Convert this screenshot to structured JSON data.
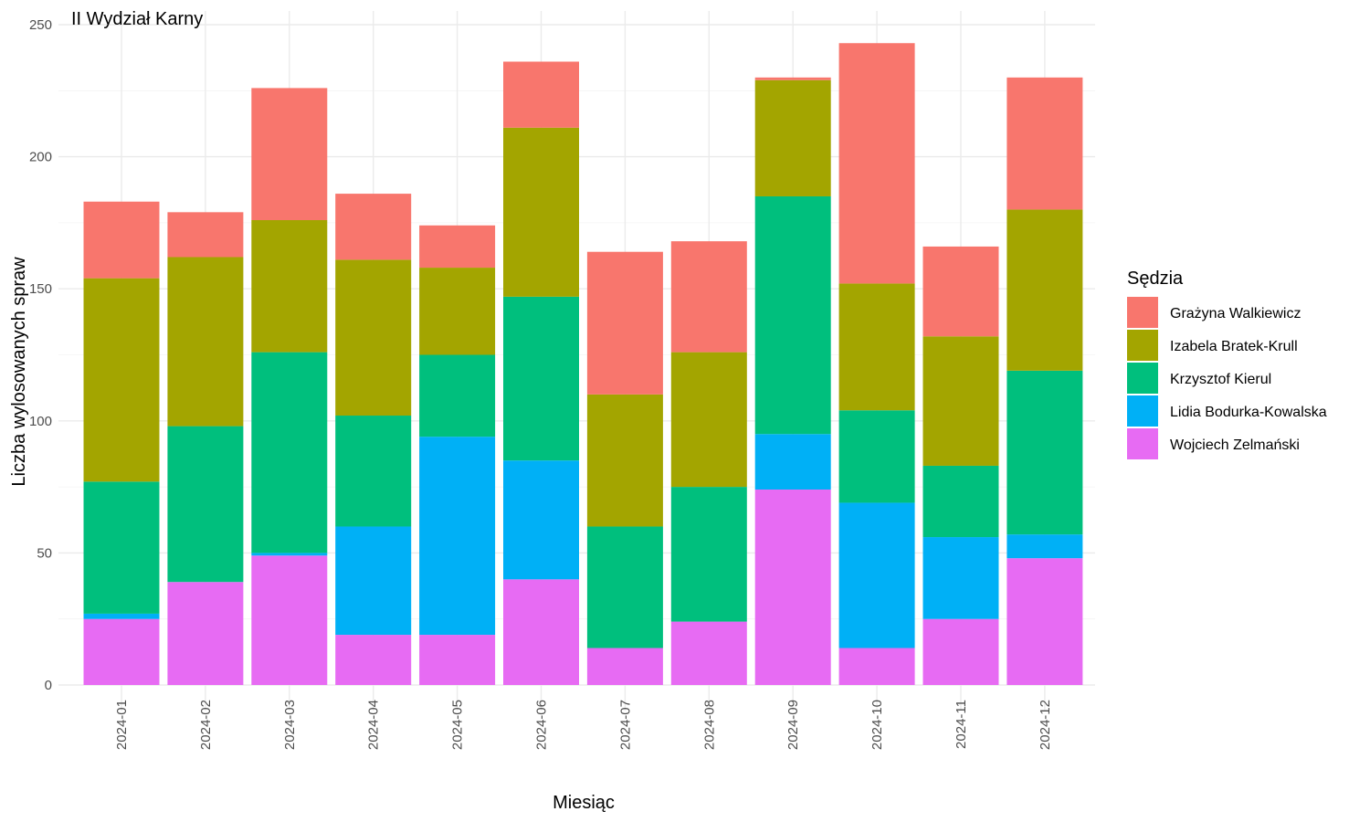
{
  "chart_data": {
    "type": "bar",
    "stacked": true,
    "title": "II Wydział Karny",
    "xlabel": "Miesiąc",
    "ylabel": "Liczba wylosowanych spraw",
    "ylim": [
      0,
      250
    ],
    "yticks": [
      0,
      50,
      100,
      150,
      200,
      250
    ],
    "grid": true,
    "legend_title": "Sędzia",
    "legend_position": "right",
    "categories": [
      "2024-01",
      "2024-02",
      "2024-03",
      "2024-04",
      "2024-05",
      "2024-06",
      "2024-07",
      "2024-08",
      "2024-09",
      "2024-10",
      "2024-11",
      "2024-12"
    ],
    "series": [
      {
        "name": "Wojciech Zelmański",
        "color": "#E76BF3",
        "values": [
          25,
          39,
          49,
          19,
          19,
          40,
          14,
          24,
          74,
          14,
          25,
          48
        ]
      },
      {
        "name": "Lidia Bodurka-Kowalska",
        "color": "#00B0F6",
        "values": [
          2,
          0,
          1,
          41,
          75,
          45,
          0,
          0,
          21,
          55,
          31,
          9
        ]
      },
      {
        "name": "Krzysztof Kierul",
        "color": "#00BF7D",
        "values": [
          50,
          59,
          76,
          42,
          31,
          62,
          46,
          51,
          90,
          35,
          27,
          62
        ]
      },
      {
        "name": "Izabela Bratek-Krull",
        "color": "#A3A500",
        "values": [
          77,
          64,
          50,
          59,
          33,
          64,
          50,
          51,
          44,
          48,
          49,
          61
        ]
      },
      {
        "name": "Grażyna Walkiewicz",
        "color": "#F8766D",
        "values": [
          29,
          17,
          50,
          25,
          16,
          25,
          54,
          42,
          1,
          91,
          34,
          50
        ]
      }
    ],
    "legend_order": [
      "Grażyna Walkiewicz",
      "Izabela Bratek-Krull",
      "Krzysztof Kierul",
      "Lidia Bodurka-Kowalska",
      "Wojciech Zelmański"
    ]
  }
}
